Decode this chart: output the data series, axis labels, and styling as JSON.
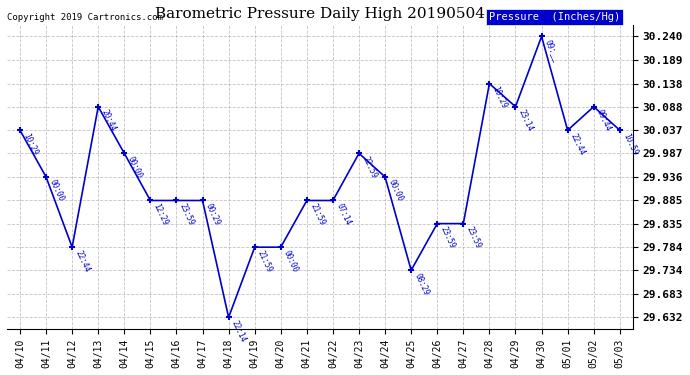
{
  "title": "Barometric Pressure Daily High 20190504",
  "copyright": "Copyright 2019 Cartronics.com",
  "legend_label": "Pressure  (Inches/Hg)",
  "dates": [
    "04/10",
    "04/11",
    "04/12",
    "04/13",
    "04/14",
    "04/15",
    "04/16",
    "04/17",
    "04/18",
    "04/19",
    "04/20",
    "04/21",
    "04/22",
    "04/23",
    "04/24",
    "04/25",
    "04/26",
    "04/27",
    "04/28",
    "04/29",
    "04/30",
    "05/01",
    "05/02",
    "05/03"
  ],
  "values": [
    30.037,
    29.936,
    29.784,
    30.088,
    29.987,
    29.885,
    29.885,
    29.885,
    29.632,
    29.784,
    29.784,
    29.885,
    29.885,
    29.987,
    29.936,
    29.734,
    29.835,
    29.835,
    30.138,
    30.088,
    30.24,
    30.037,
    30.088,
    30.037
  ],
  "time_labels": [
    "10:29",
    "00:00",
    "22:44",
    "20:44",
    "00:00",
    "12:29",
    "23:59",
    "00:29",
    "22:14",
    "21:59",
    "00:00",
    "21:59",
    "07:14",
    "22:59",
    "00:00",
    "08:29",
    "23:59",
    "23:59",
    "10:29",
    "23:14",
    "09:__",
    "22:44",
    "09:44",
    "10:59"
  ],
  "ylim": [
    29.607,
    30.265
  ],
  "yticks": [
    29.632,
    29.683,
    29.734,
    29.784,
    29.835,
    29.885,
    29.936,
    29.987,
    30.037,
    30.088,
    30.138,
    30.189,
    30.24
  ],
  "line_color": "#0000cc",
  "marker_color": "#0000cc",
  "bg_color": "#ffffff",
  "grid_color": "#aaaaaa",
  "title_color": "#000000",
  "copyright_color": "#000000",
  "legend_bg": "#0000cc",
  "legend_text_color": "#ffffff"
}
